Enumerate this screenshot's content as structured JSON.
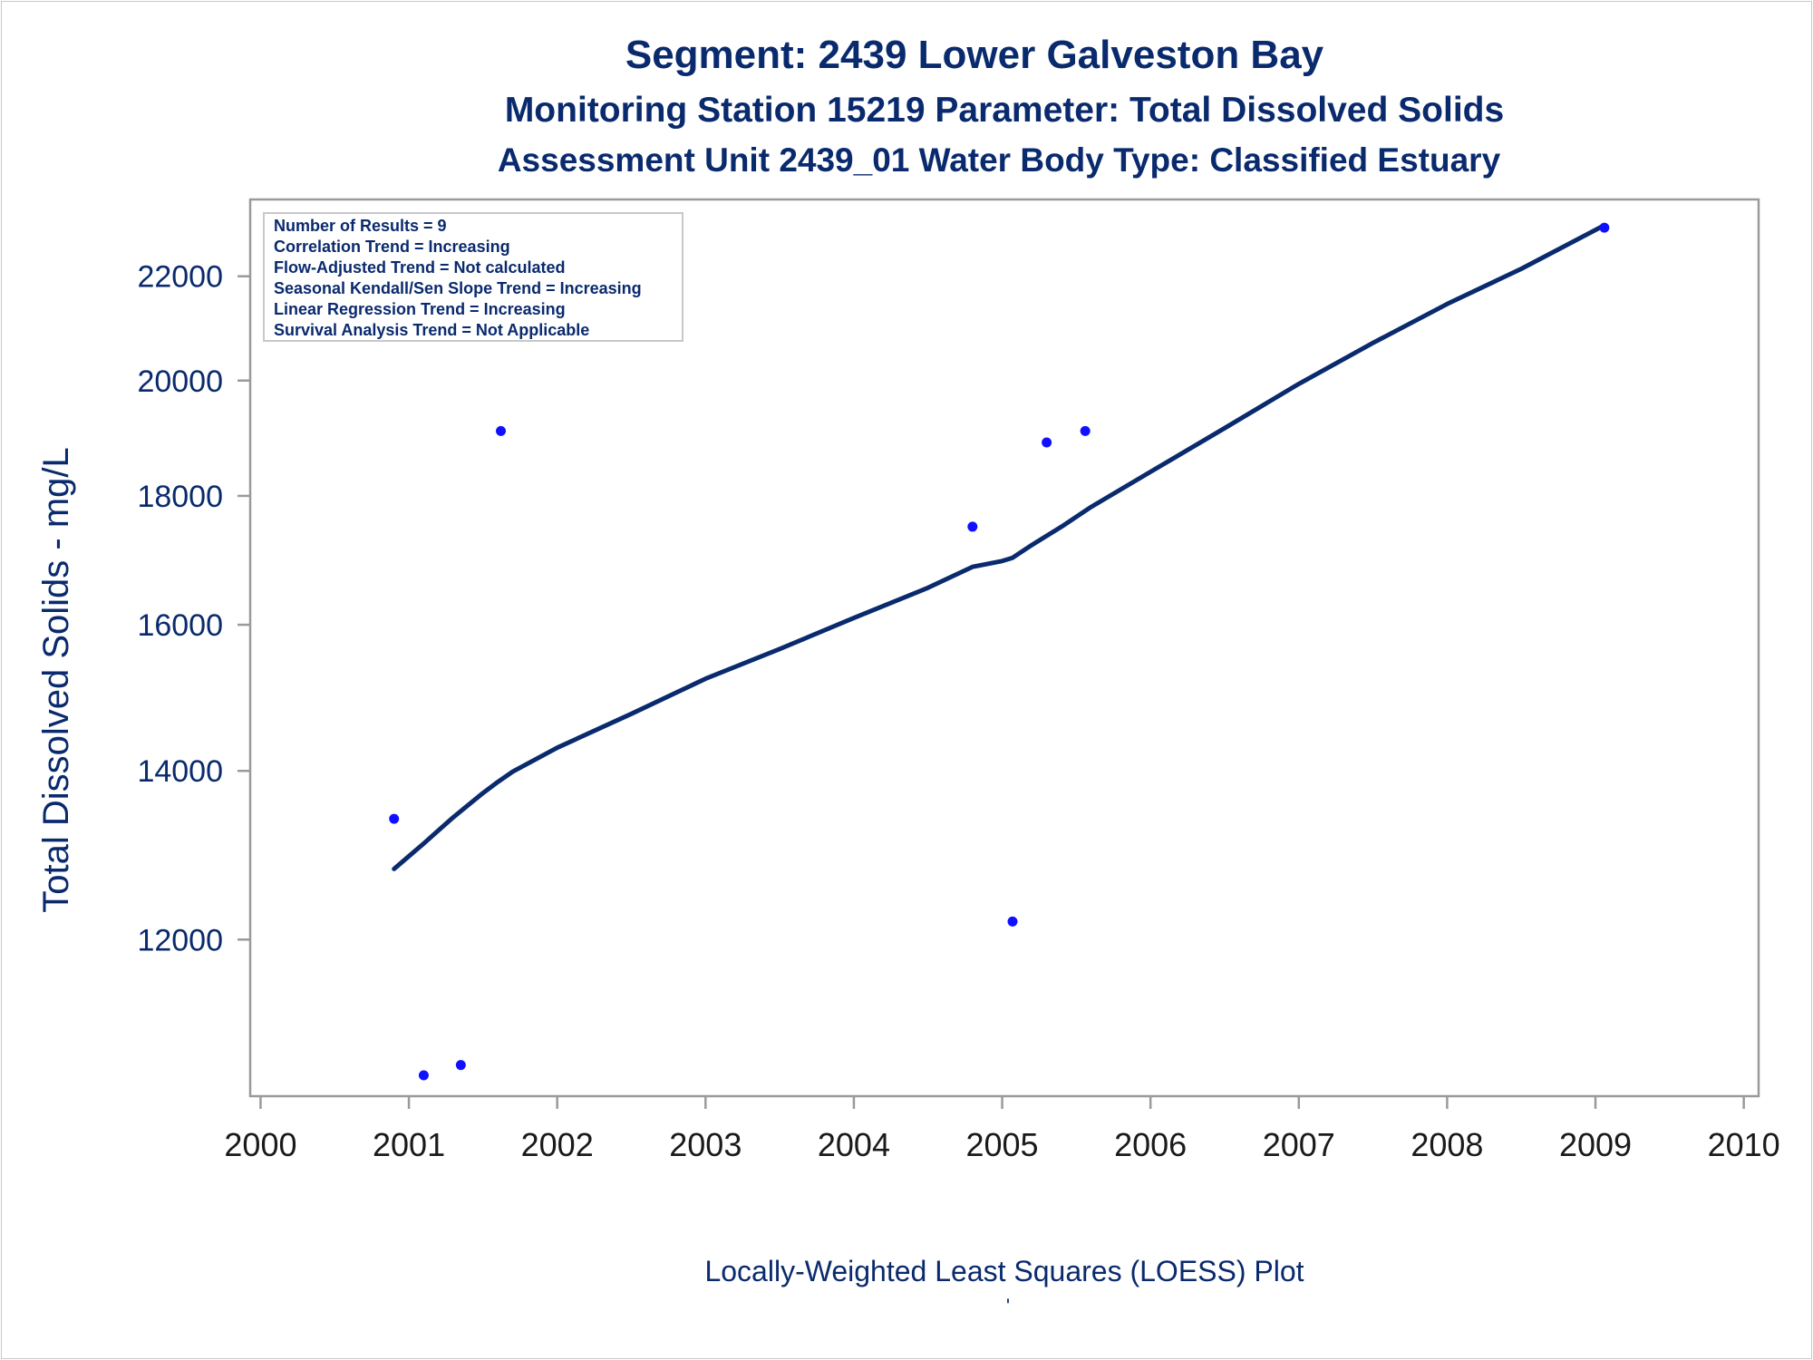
{
  "header": {
    "title": "Segment: 2439  Lower Galveston Bay",
    "subtitle": "Monitoring Station 15219 Parameter: Total Dissolved Solids",
    "subtitle2": "Assessment Unit 2439_01   Water Body Type: Classified Estuary"
  },
  "stats_box": [
    "Number of Results = 9",
    "Correlation Trend = Increasing",
    "Flow-Adjusted Trend = Not calculated",
    "Seasonal Kendall/Sen Slope Trend = Increasing",
    "Linear Regression Trend = Increasing",
    "Survival Analysis Trend = Not Applicable"
  ],
  "footer": {
    "caption": "Locally-Weighted Least Squares (LOESS) Plot",
    "mark": "'"
  },
  "colors": {
    "text": "#0a2a6e",
    "points": "#1010ff",
    "line": "#0a2a6e",
    "axis": "#9a9a9a"
  },
  "chart_data": {
    "type": "scatter",
    "title": "Segment: 2439  Lower Galveston Bay",
    "xlabel": "",
    "ylabel": "Total Dissolved Solids - mg/L",
    "xlim": [
      1999.93,
      2010.1
    ],
    "ylim": [
      10400,
      23600
    ],
    "y_scale": "log",
    "x_ticks": [
      2000,
      2001,
      2002,
      2003,
      2004,
      2005,
      2006,
      2007,
      2008,
      2009,
      2010
    ],
    "y_ticks": [
      12000,
      14000,
      16000,
      18000,
      20000,
      22000
    ],
    "grid": false,
    "series": [
      {
        "kind": "points",
        "x": [
          2000.9,
          2001.1,
          2001.35,
          2001.62,
          2004.8,
          2005.07,
          2005.3,
          2005.56,
          2009.06
        ],
        "y": [
          13400,
          10600,
          10700,
          19100,
          17500,
          12200,
          18900,
          19100,
          23000
        ]
      },
      {
        "kind": "loess",
        "x": [
          2000.9,
          2001.0,
          2001.1,
          2001.2,
          2001.3,
          2001.4,
          2001.5,
          2001.6,
          2001.7,
          2002.0,
          2002.5,
          2003.0,
          2003.5,
          2004.0,
          2004.5,
          2004.8,
          2005.0,
          2005.07,
          2005.2,
          2005.4,
          2005.6,
          2006.0,
          2006.5,
          2007.0,
          2007.5,
          2008.0,
          2008.5,
          2009.06
        ],
        "y": [
          12800,
          12950,
          13100,
          13260,
          13420,
          13570,
          13720,
          13860,
          13990,
          14300,
          14750,
          15230,
          15650,
          16100,
          16550,
          16870,
          16960,
          17010,
          17210,
          17500,
          17820,
          18400,
          19150,
          19940,
          20700,
          21450,
          22150,
          23050
        ]
      }
    ]
  }
}
